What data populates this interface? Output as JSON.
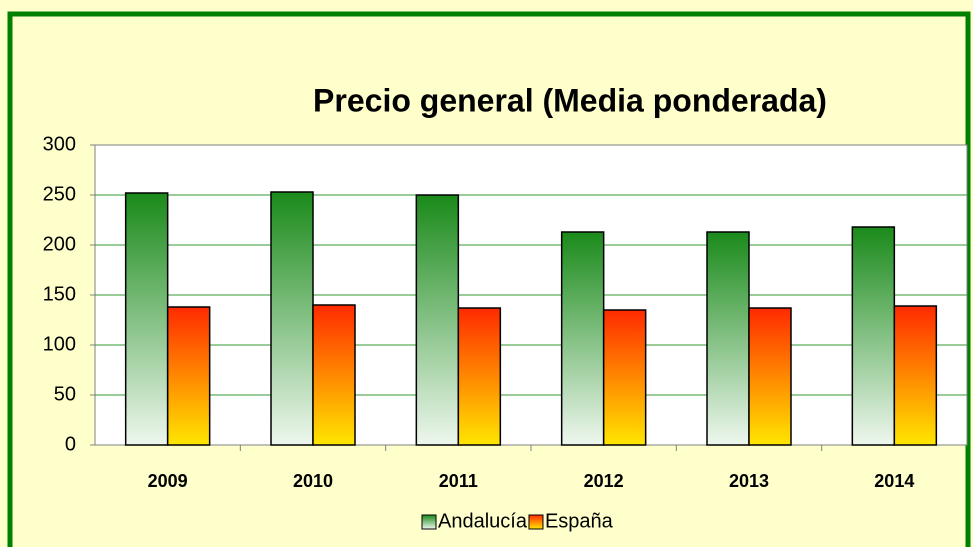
{
  "chart_data": {
    "type": "bar",
    "title": "Precio general (Media ponderada)",
    "categories": [
      "2009",
      "2010",
      "2011",
      "2012",
      "2013",
      "2014"
    ],
    "series": [
      {
        "name": "Andalucía",
        "color": "#1a8a1a",
        "values": [
          252,
          253,
          250,
          213,
          213,
          218
        ]
      },
      {
        "name": "España",
        "color": "#ff2a00",
        "values": [
          138,
          140,
          137,
          135,
          137,
          139
        ]
      }
    ],
    "ylim": [
      0,
      300
    ],
    "yticks": [
      0,
      50,
      100,
      150,
      200,
      250,
      300
    ],
    "grid": true,
    "legend": "bottom"
  }
}
